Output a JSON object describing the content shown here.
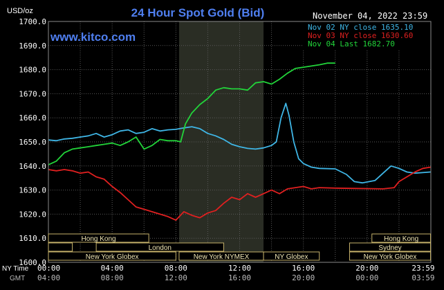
{
  "header": {
    "title": "24 Hour Spot Gold (Bid)",
    "date": "November 04, 2022 23:59",
    "site": "www.kitco.com",
    "unit": "USD/oz"
  },
  "colors": {
    "background": "#000000",
    "plot_bg": "#000000",
    "grid": "#5a5a5a",
    "nymex_band": "#2a2d24",
    "title": "#4f7ff0",
    "site": "#4f7ff0",
    "axis_text": "#ffffff",
    "session_bar": "#000000",
    "session_border": "#c7b36b",
    "session_text": "#f1e7b4"
  },
  "sessions": [
    {
      "label": "Hong Kong",
      "row": 0,
      "start": 0.0,
      "end": 6.3
    },
    {
      "label": "Hong Kong",
      "row": 0,
      "start": 20.3,
      "end": 23.98
    },
    {
      "label": "",
      "row": 1,
      "start": 0.0,
      "end": 1.5
    },
    {
      "label": "London",
      "row": 1,
      "start": 3.0,
      "end": 11.0
    },
    {
      "label": "Sydney",
      "row": 1,
      "start": 18.9,
      "end": 23.98
    },
    {
      "label": "New York Globex",
      "row": 2,
      "start": 0.0,
      "end": 8.0
    },
    {
      "label": "New York NYMEX",
      "row": 2,
      "start": 8.2,
      "end": 13.5
    },
    {
      "label": "NY Globex",
      "row": 2,
      "start": 13.5,
      "end": 17.0
    },
    {
      "label": "New York Globex",
      "row": 2,
      "start": 18.9,
      "end": 23.98
    }
  ],
  "time_axis": {
    "ny_label": "NY Time",
    "gmt_label": "GMT",
    "ny_ticks": [
      "00:00",
      "04:00",
      "08:00",
      "12:00",
      "16:00",
      "20:00",
      "23:59"
    ],
    "gmt_ticks": [
      "04:00",
      "08:00",
      "12:00",
      "16:00",
      "20:00",
      "00:00",
      "03:59"
    ]
  },
  "chart_data": {
    "type": "line",
    "title": "24 Hour Spot Gold (Bid)",
    "ylabel": "USD/oz",
    "ylim": [
      1600.0,
      1700.0
    ],
    "yticks": [
      1600.0,
      1610.0,
      1620.0,
      1630.0,
      1640.0,
      1650.0,
      1660.0,
      1670.0,
      1680.0,
      1690.0,
      1700.0
    ],
    "ytick_labels": [
      "1600.0",
      "1610.0",
      "1620.0",
      "1630.0",
      "1640.0",
      "1650.0",
      "1660.0",
      "1670.0",
      "1680.0",
      "1690.0",
      "1700.0"
    ],
    "xlim": [
      0,
      24
    ],
    "grid": true,
    "legend_placement": "top-right",
    "nymex_shade": [
      8.2,
      13.5
    ],
    "series": [
      {
        "name": "Nov 02 NY close 1635.10",
        "color": "#3fb6e6",
        "points": [
          [
            0,
            1650.8
          ],
          [
            0.5,
            1650.5
          ],
          [
            1,
            1651.2
          ],
          [
            1.5,
            1651.5
          ],
          [
            2,
            1652.0
          ],
          [
            2.5,
            1652.5
          ],
          [
            3,
            1653.5
          ],
          [
            3.5,
            1652.0
          ],
          [
            4,
            1653.0
          ],
          [
            4.5,
            1654.5
          ],
          [
            5,
            1655.0
          ],
          [
            5.5,
            1653.5
          ],
          [
            6,
            1654.0
          ],
          [
            6.5,
            1655.5
          ],
          [
            7,
            1654.5
          ],
          [
            7.5,
            1655.0
          ],
          [
            8,
            1655.2
          ],
          [
            8.5,
            1655.8
          ],
          [
            9,
            1656.3
          ],
          [
            9.5,
            1655.5
          ],
          [
            10,
            1653.5
          ],
          [
            10.5,
            1652.5
          ],
          [
            11,
            1651.0
          ],
          [
            11.5,
            1649.0
          ],
          [
            12,
            1648.0
          ],
          [
            12.5,
            1647.3
          ],
          [
            13,
            1647.0
          ],
          [
            13.5,
            1647.5
          ],
          [
            14,
            1648.5
          ],
          [
            14.3,
            1650.0
          ],
          [
            14.6,
            1660.0
          ],
          [
            14.9,
            1666.0
          ],
          [
            15.1,
            1661.0
          ],
          [
            15.4,
            1650.0
          ],
          [
            15.7,
            1643.0
          ],
          [
            16,
            1641.0
          ],
          [
            16.5,
            1639.5
          ],
          [
            17,
            1639.0
          ],
          [
            18,
            1638.8
          ],
          [
            18.7,
            1636.5
          ],
          [
            19.2,
            1633.5
          ],
          [
            19.7,
            1633.0
          ],
          [
            20.5,
            1634.0
          ],
          [
            21,
            1637.0
          ],
          [
            21.5,
            1640.0
          ],
          [
            22,
            1639.0
          ],
          [
            22.5,
            1637.5
          ],
          [
            23,
            1637.0
          ],
          [
            23.98,
            1637.5
          ]
        ]
      },
      {
        "name": "Nov 03 NY close 1630.60",
        "color": "#e02020",
        "points": [
          [
            0,
            1638.5
          ],
          [
            0.5,
            1638.0
          ],
          [
            1,
            1638.5
          ],
          [
            1.5,
            1638.0
          ],
          [
            2,
            1637.0
          ],
          [
            2.5,
            1637.5
          ],
          [
            3,
            1635.5
          ],
          [
            3.5,
            1634.5
          ],
          [
            4,
            1631.5
          ],
          [
            4.5,
            1629.0
          ],
          [
            5,
            1626.0
          ],
          [
            5.5,
            1623.0
          ],
          [
            6,
            1622.0
          ],
          [
            6.5,
            1621.0
          ],
          [
            7,
            1620.0
          ],
          [
            7.5,
            1619.0
          ],
          [
            8,
            1617.5
          ],
          [
            8.5,
            1621.0
          ],
          [
            9,
            1619.5
          ],
          [
            9.5,
            1618.5
          ],
          [
            10,
            1620.5
          ],
          [
            10.5,
            1621.5
          ],
          [
            11,
            1624.5
          ],
          [
            11.5,
            1627.0
          ],
          [
            12,
            1626.0
          ],
          [
            12.5,
            1628.5
          ],
          [
            13,
            1627.0
          ],
          [
            13.5,
            1628.5
          ],
          [
            14,
            1630.0
          ],
          [
            14.5,
            1628.5
          ],
          [
            15,
            1630.5
          ],
          [
            15.5,
            1631.0
          ],
          [
            16,
            1631.5
          ],
          [
            16.5,
            1630.5
          ],
          [
            17,
            1631.0
          ],
          [
            18,
            1630.8
          ],
          [
            19,
            1630.7
          ],
          [
            20,
            1630.6
          ],
          [
            21,
            1630.5
          ],
          [
            21.7,
            1631.0
          ],
          [
            22,
            1633.5
          ],
          [
            22.5,
            1635.5
          ],
          [
            23,
            1637.5
          ],
          [
            23.5,
            1639.0
          ],
          [
            23.98,
            1639.5
          ]
        ]
      },
      {
        "name": "Nov 04 Last 1682.70",
        "color": "#22d43a",
        "points": [
          [
            0,
            1640.5
          ],
          [
            0.5,
            1642.0
          ],
          [
            1,
            1645.5
          ],
          [
            1.5,
            1647.0
          ],
          [
            2,
            1647.5
          ],
          [
            2.5,
            1648.0
          ],
          [
            3,
            1648.5
          ],
          [
            3.5,
            1649.0
          ],
          [
            4,
            1649.5
          ],
          [
            4.5,
            1648.5
          ],
          [
            5,
            1650.0
          ],
          [
            5.5,
            1652.0
          ],
          [
            6,
            1647.0
          ],
          [
            6.5,
            1648.5
          ],
          [
            7,
            1651.0
          ],
          [
            7.5,
            1650.5
          ],
          [
            8,
            1650.5
          ],
          [
            8.3,
            1650.0
          ],
          [
            8.6,
            1657.5
          ],
          [
            9,
            1662.0
          ],
          [
            9.5,
            1665.5
          ],
          [
            10,
            1668.0
          ],
          [
            10.5,
            1671.5
          ],
          [
            11,
            1672.5
          ],
          [
            11.5,
            1672.0
          ],
          [
            12,
            1672.0
          ],
          [
            12.5,
            1671.5
          ],
          [
            13,
            1674.5
          ],
          [
            13.5,
            1675.0
          ],
          [
            14,
            1674.0
          ],
          [
            14.5,
            1676.0
          ],
          [
            15,
            1678.5
          ],
          [
            15.5,
            1680.5
          ],
          [
            16,
            1681.0
          ],
          [
            16.5,
            1681.5
          ],
          [
            17,
            1682.0
          ],
          [
            17.5,
            1682.7
          ],
          [
            18,
            1682.7
          ]
        ]
      }
    ]
  }
}
